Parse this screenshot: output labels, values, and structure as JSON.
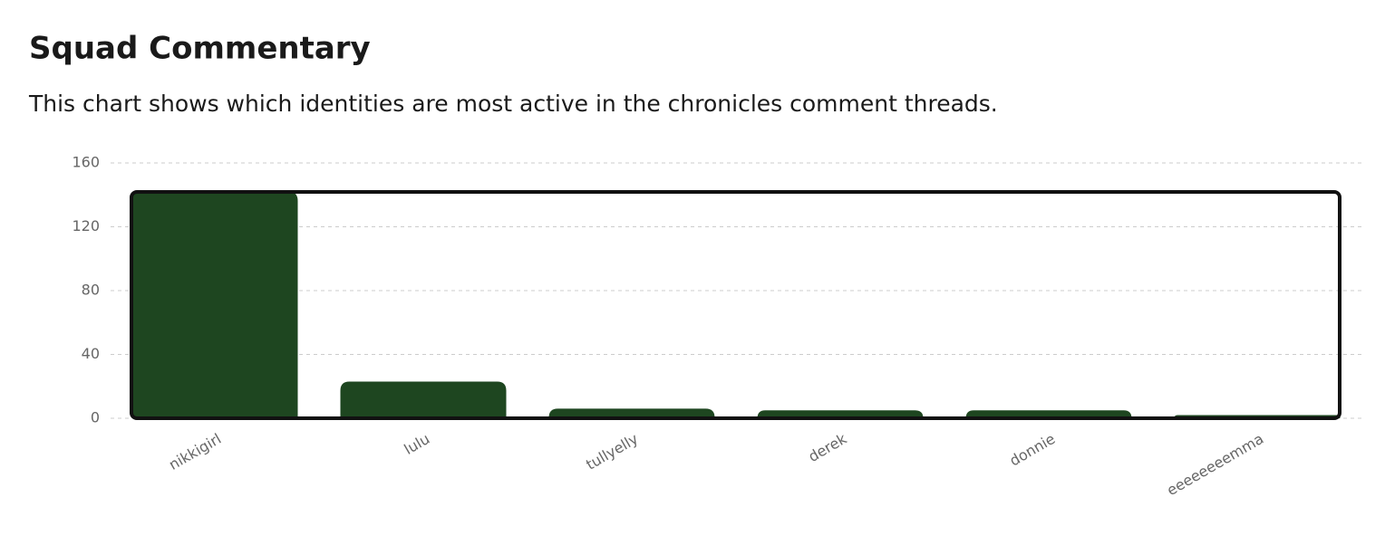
{
  "chart_data": {
    "type": "bar",
    "title": "Squad Commentary",
    "subtitle": "This chart shows which identities are most active in the chronicles comment threads.",
    "categories": [
      "nikkigirl",
      "lulu",
      "tullyelly",
      "derek",
      "donnie",
      "eeeeeeeemma"
    ],
    "values": [
      142,
      23,
      6,
      5,
      5,
      2
    ],
    "color": "#1e4620",
    "ylim": [
      0,
      160
    ],
    "yticks": [
      0,
      40,
      80,
      120,
      160
    ],
    "grid": true
  }
}
